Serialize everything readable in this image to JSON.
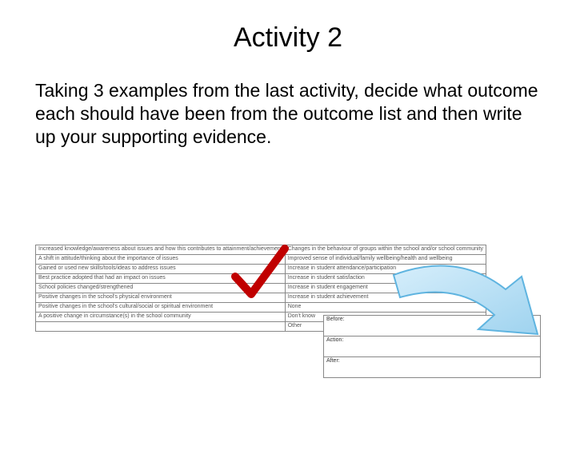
{
  "title": "Activity 2",
  "body": "Taking 3 examples from the last activity, decide what outcome each should have been from the outcome list and then write up your supporting evidence.",
  "outcome_table": {
    "rows": [
      [
        "Increased knowledge/awareness about issues and how this contributes to attainment/achievement",
        "Changes in the behaviour of groups within the school and/or school community"
      ],
      [
        "A shift in attitude/thinking about the importance of issues",
        "Improved sense of individual/family wellbeing/health and wellbeing"
      ],
      [
        "Gained or used new skills/tools/ideas to address issues",
        "Increase in student attendance/participation"
      ],
      [
        "Best practice adopted that had an impact on issues",
        "Increase in student satisfaction"
      ],
      [
        "School policies changed/strengthened",
        "Increase in student engagement"
      ],
      [
        "Positive changes in the school's physical environment",
        "Increase in student achievement"
      ],
      [
        "Positive changes in the school's cultural/social or spiritual environment",
        "None"
      ],
      [
        "A positive change in circumstance(s) in the school community",
        "Don't know"
      ],
      [
        "",
        "Other"
      ]
    ]
  },
  "action_table": {
    "rows": [
      "Before:",
      "Action:",
      "After:"
    ]
  },
  "checkmark": {
    "color": "#c00000",
    "stroke_width": 10
  },
  "arrow": {
    "fill": "#b8dff4",
    "stroke": "#5fb4e0",
    "stroke_width": 2
  }
}
